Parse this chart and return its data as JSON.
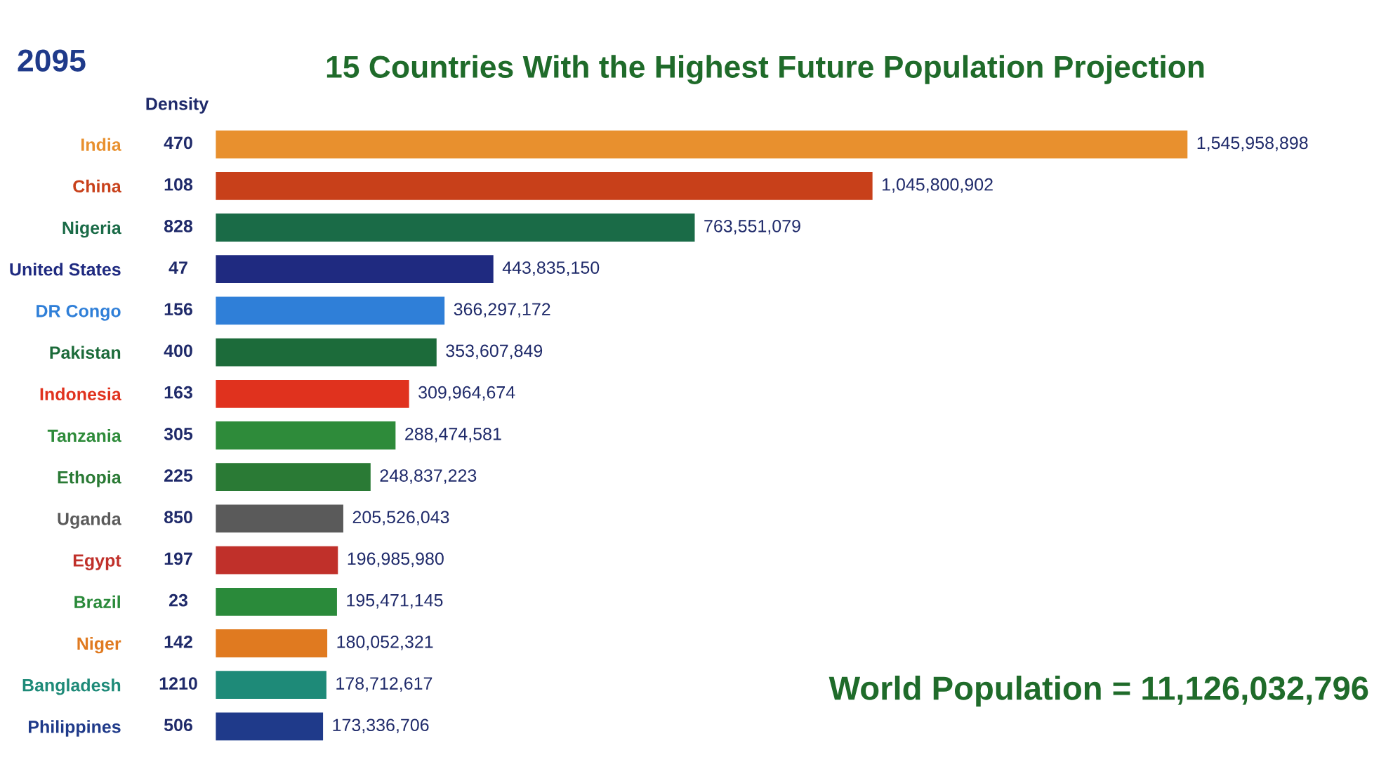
{
  "chart_data": {
    "type": "bar",
    "orientation": "horizontal",
    "title": "15 Countries With the Highest Future Population Projection",
    "categories": [
      "India",
      "China",
      "Nigeria",
      "United States",
      "DR Congo",
      "Pakistan",
      "Indonesia",
      "Tanzania",
      "Ethopia",
      "Uganda",
      "Egypt",
      "Brazil",
      "Niger",
      "Bangladesh",
      "Philippines"
    ],
    "values": [
      1545958898,
      1045800902,
      763551079,
      443835150,
      366297172,
      353607849,
      309964674,
      288474581,
      248837223,
      205526043,
      196985980,
      195471145,
      180052321,
      178712617,
      173336706
    ],
    "value_labels": [
      "1,545,958,898",
      "1,045,800,902",
      "763,551,079",
      "443,835,150",
      "366,297,172",
      "353,607,849",
      "309,964,674",
      "288,474,581",
      "248,837,223",
      "205,526,043",
      "196,985,980",
      "195,471,145",
      "180,052,321",
      "178,712,617",
      "173,336,706"
    ],
    "colors": [
      "#e8902e",
      "#c8401a",
      "#1a6b47",
      "#1f2a80",
      "#2f7fd8",
      "#1c6b3a",
      "#e0321e",
      "#2e8b3a",
      "#2a7a35",
      "#5a5a5a",
      "#c0302a",
      "#2a8a3a",
      "#e07a20",
      "#1e8a78",
      "#1f3a8a"
    ],
    "annotations": [
      "2095",
      "Density",
      "470",
      "108",
      "828",
      "47",
      "156",
      "400",
      "163",
      "305",
      "225",
      "850",
      "197",
      "23",
      "142",
      "1210",
      "506",
      "World Population = 11,126,032,796"
    ]
  }
}
